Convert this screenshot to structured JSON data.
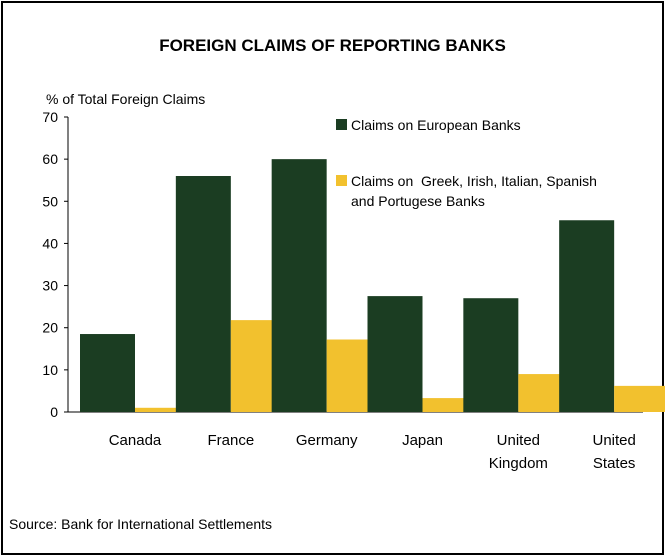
{
  "chart_data": {
    "type": "bar",
    "title": "FOREIGN CLAIMS OF REPORTING BANKS",
    "ylabel": "% of Total Foreign Claims",
    "xlabel": "",
    "ylim": [
      0,
      70
    ],
    "yticks": [
      0,
      10,
      20,
      30,
      40,
      50,
      60,
      70
    ],
    "categories": [
      [
        "Canada"
      ],
      [
        "France"
      ],
      [
        "Germany"
      ],
      [
        "Japan"
      ],
      [
        "United",
        "Kingdom"
      ],
      [
        "United",
        "States"
      ]
    ],
    "series": [
      {
        "name": "Claims on European Banks",
        "color": "#1b3d22",
        "values": [
          18.5,
          56,
          60,
          27.5,
          27,
          45.5
        ]
      },
      {
        "name_lines": [
          "Claims on  Greek, Irish, Italian, Spanish",
          "and Portugese Banks"
        ],
        "color": "#f2c12e",
        "values": [
          1,
          21.8,
          17.2,
          3.3,
          9,
          6.2
        ]
      }
    ],
    "grid": false,
    "legend_position": "top-right",
    "source": "Source: Bank for International Settlements"
  }
}
